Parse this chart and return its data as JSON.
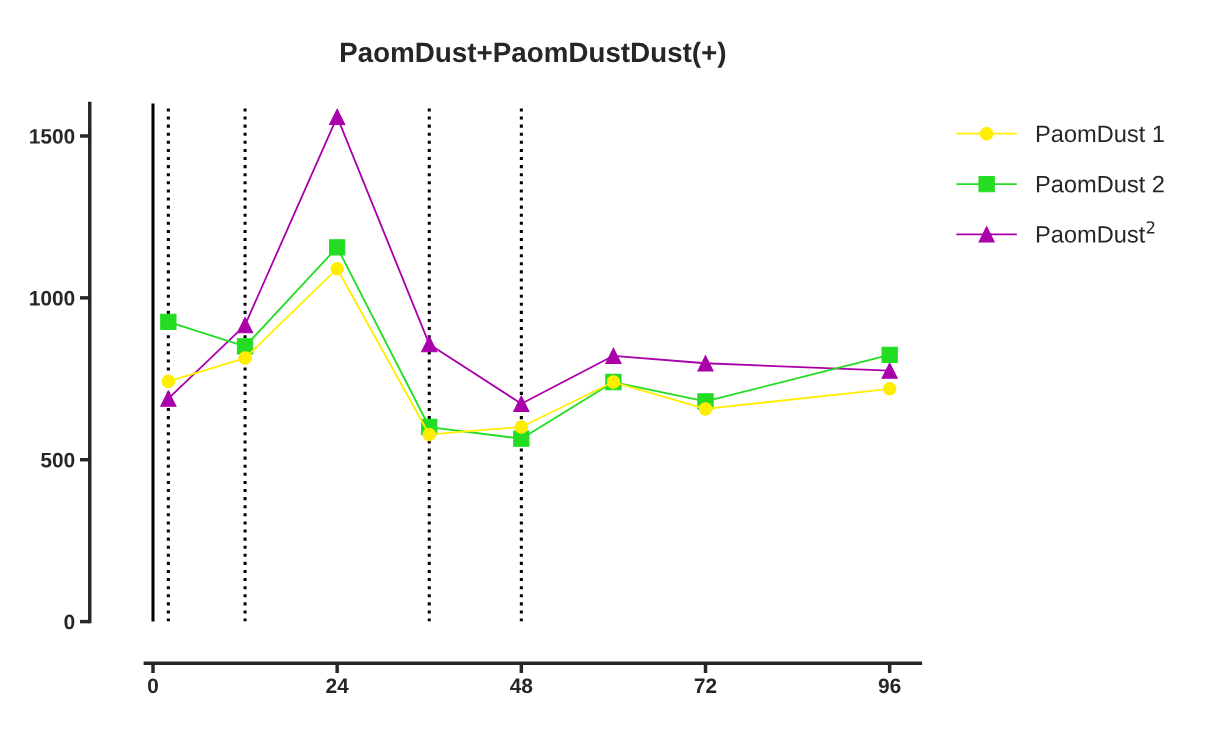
{
  "chart_data": {
    "type": "line",
    "title": "PaomDust+PaomDustDust(+)",
    "x": [
      2,
      12,
      24,
      36,
      48,
      60,
      72,
      96
    ],
    "xlim": [
      -1,
      100
    ],
    "xticks": [
      0,
      24,
      48,
      72,
      96
    ],
    "ylim": [
      0,
      1600
    ],
    "yticks": [
      0,
      500,
      1000,
      1500
    ],
    "series": [
      {
        "name": "PaomDust 1",
        "color": "#ffee00",
        "marker": "circle",
        "values": [
          742,
          814,
          1090,
          578,
          601,
          740,
          657,
          719
        ]
      },
      {
        "name": "PaomDust 2",
        "color": "#22dd22",
        "marker": "square",
        "values": [
          926,
          850,
          1156,
          601,
          565,
          740,
          680,
          824
        ]
      },
      {
        "name": "PaomDust$^{2}$",
        "color": "#aa00aa",
        "marker": "triangle",
        "values": [
          689,
          916,
          1559,
          857,
          673,
          821,
          798,
          775
        ]
      }
    ],
    "ref_lines": [
      {
        "axis": "x",
        "value": 0,
        "line_style": "solid",
        "color": "#000000"
      },
      {
        "axis": "x",
        "value": 2,
        "line_style": "dotted",
        "color": "#000000"
      },
      {
        "axis": "x",
        "value": 12,
        "line_style": "dotted",
        "color": "#000000"
      },
      {
        "axis": "x",
        "value": 36,
        "line_style": "dotted",
        "color": "#000000"
      },
      {
        "axis": "x",
        "value": 48,
        "line_style": "dotted",
        "color": "#000000"
      }
    ],
    "grid": false,
    "legend": "right"
  }
}
